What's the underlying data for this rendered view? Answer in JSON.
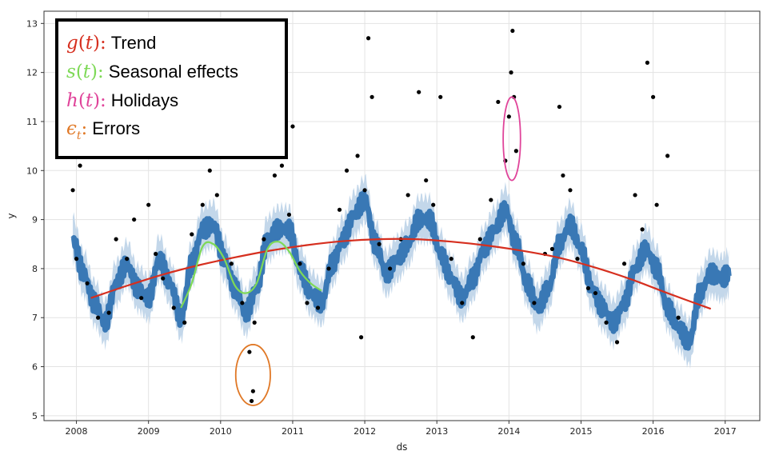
{
  "chart_data": {
    "type": "line",
    "xlabel": "ds",
    "ylabel": "y",
    "xlim": [
      2007.55,
      2017.48
    ],
    "ylim": [
      4.9,
      13.25
    ],
    "x_ticks": [
      "2008",
      "2009",
      "2010",
      "2011",
      "2012",
      "2013",
      "2014",
      "2015",
      "2016",
      "2017"
    ],
    "y_ticks": [
      "5",
      "6",
      "7",
      "8",
      "9",
      "10",
      "11",
      "12",
      "13"
    ],
    "grid": true,
    "colors": {
      "forecast": "#3173b2",
      "band": "#c3d7ea",
      "points": "#000000",
      "trend": "#d62f1f",
      "seasonal": "#7ed957",
      "holiday": "#e0449a",
      "errors": "#e07826"
    },
    "series": [
      {
        "kind": "forecast",
        "x": [
          2007.95,
          2008.1,
          2008.25,
          2008.4,
          2008.55,
          2008.7,
          2008.85,
          2009.0,
          2009.15,
          2009.3,
          2009.45,
          2009.6,
          2009.75,
          2009.9,
          2010.05,
          2010.2,
          2010.35,
          2010.5,
          2010.65,
          2010.8,
          2010.95,
          2011.1,
          2011.25,
          2011.4,
          2011.55,
          2011.7,
          2011.85,
          2012.0,
          2012.15,
          2012.3,
          2012.45,
          2012.6,
          2012.75,
          2012.9,
          2013.05,
          2013.2,
          2013.35,
          2013.5,
          2013.65,
          2013.8,
          2013.95,
          2014.1,
          2014.25,
          2014.4,
          2014.55,
          2014.7,
          2014.85,
          2015.0,
          2015.15,
          2015.3,
          2015.45,
          2015.6,
          2015.75,
          2015.9,
          2016.05,
          2016.2,
          2016.35,
          2016.5,
          2016.65,
          2016.8,
          2016.95,
          2017.05
        ],
        "y": [
          8.6,
          7.9,
          7.3,
          6.9,
          7.7,
          8.1,
          7.6,
          7.4,
          8.2,
          7.7,
          7.0,
          8.1,
          8.8,
          8.9,
          8.2,
          7.6,
          7.1,
          7.6,
          8.6,
          8.8,
          8.8,
          8.0,
          7.5,
          7.3,
          8.1,
          8.6,
          9.1,
          9.4,
          8.5,
          7.9,
          8.2,
          8.5,
          9.0,
          9.0,
          8.3,
          7.8,
          7.4,
          7.8,
          8.4,
          8.8,
          9.2,
          8.5,
          7.7,
          7.2,
          7.6,
          8.5,
          8.9,
          8.4,
          7.6,
          7.2,
          6.9,
          7.3,
          8.0,
          8.4,
          8.0,
          7.2,
          6.8,
          6.5,
          7.5,
          7.9,
          7.8,
          7.9
        ],
        "band_halfwidth": 0.45
      },
      {
        "kind": "trend",
        "x": [
          2008.2,
          2008.7,
          2009.2,
          2009.7,
          2010.2,
          2010.7,
          2011.2,
          2011.7,
          2012.2,
          2012.7,
          2013.2,
          2013.7,
          2014.2,
          2014.7,
          2015.2,
          2015.7,
          2016.2,
          2016.8
        ],
        "y": [
          7.4,
          7.65,
          7.88,
          8.07,
          8.23,
          8.37,
          8.48,
          8.56,
          8.6,
          8.6,
          8.55,
          8.47,
          8.36,
          8.22,
          8.02,
          7.78,
          7.5,
          7.18
        ]
      },
      {
        "kind": "seasonal",
        "x": [
          2009.45,
          2009.6,
          2009.75,
          2009.9,
          2010.05,
          2010.2,
          2010.35,
          2010.5,
          2010.65,
          2010.8,
          2010.95,
          2011.1,
          2011.25,
          2011.4
        ],
        "y": [
          7.2,
          7.7,
          8.45,
          8.5,
          8.2,
          7.65,
          7.5,
          7.7,
          8.4,
          8.55,
          8.35,
          7.95,
          7.7,
          7.55
        ]
      },
      {
        "kind": "points",
        "x": [
          2007.95,
          2008.0,
          2008.05,
          2008.15,
          2008.3,
          2008.45,
          2008.55,
          2008.7,
          2008.8,
          2008.9,
          2009.0,
          2009.1,
          2009.2,
          2009.35,
          2009.5,
          2009.6,
          2009.75,
          2009.85,
          2009.95,
          2010.05,
          2010.15,
          2010.3,
          2010.4,
          2010.43,
          2010.45,
          2010.47,
          2010.6,
          2010.75,
          2010.85,
          2010.95,
          2011.0,
          2011.1,
          2011.2,
          2011.35,
          2011.5,
          2011.65,
          2011.75,
          2011.9,
          2012.0,
          2012.05,
          2012.1,
          2012.2,
          2011.95,
          2012.35,
          2012.5,
          2012.6,
          2012.75,
          2012.85,
          2012.95,
          2013.05,
          2013.2,
          2013.35,
          2013.5,
          2013.6,
          2013.75,
          2013.85,
          2013.95,
          2014.0,
          2014.03,
          2014.05,
          2014.07,
          2014.1,
          2014.2,
          2014.35,
          2014.5,
          2014.6,
          2014.7,
          2014.75,
          2014.85,
          2014.95,
          2015.1,
          2015.2,
          2015.35,
          2015.5,
          2015.6,
          2015.75,
          2015.85,
          2015.92,
          2016.0,
          2016.05,
          2016.2,
          2016.35
        ],
        "y": [
          9.6,
          8.2,
          10.1,
          7.7,
          7.0,
          7.1,
          8.6,
          8.2,
          9.0,
          7.4,
          9.3,
          8.3,
          7.8,
          7.2,
          6.9,
          8.7,
          9.3,
          10.0,
          9.5,
          10.4,
          8.1,
          7.3,
          6.3,
          5.3,
          5.5,
          6.9,
          8.6,
          9.9,
          10.1,
          9.1,
          10.9,
          8.1,
          7.3,
          7.2,
          8.0,
          9.2,
          10.0,
          10.3,
          9.6,
          12.7,
          11.5,
          8.5,
          6.6,
          8.0,
          8.6,
          9.5,
          11.6,
          9.8,
          9.3,
          11.5,
          8.2,
          7.3,
          6.6,
          8.6,
          9.4,
          11.4,
          10.2,
          11.1,
          12.0,
          12.85,
          11.5,
          10.4,
          8.1,
          7.3,
          8.3,
          8.4,
          11.3,
          9.9,
          9.6,
          8.2,
          7.6,
          7.5,
          6.9,
          6.5,
          8.1,
          9.5,
          8.8,
          12.2,
          11.5,
          9.3,
          10.3,
          7.0
        ]
      }
    ],
    "legend": {
      "entries": [
        {
          "symbol": "g",
          "arg": "t",
          "label": "Trend",
          "color": "#d62f1f"
        },
        {
          "symbol": "s",
          "arg": "t",
          "label": "Seasonal effects",
          "color": "#7ed957"
        },
        {
          "symbol": "h",
          "arg": "t",
          "label": "Holidays",
          "color": "#e0449a"
        },
        {
          "symbol": "ϵ",
          "sub": "t",
          "label": "Errors",
          "color": "#e07826"
        }
      ]
    },
    "highlights": [
      {
        "kind": "holiday",
        "x": 2014.04,
        "y": 10.65,
        "rx": 0.12,
        "ry": 0.85
      },
      {
        "kind": "errors",
        "x": 2010.45,
        "y": 5.83,
        "rx": 0.24,
        "ry": 0.62
      }
    ]
  }
}
